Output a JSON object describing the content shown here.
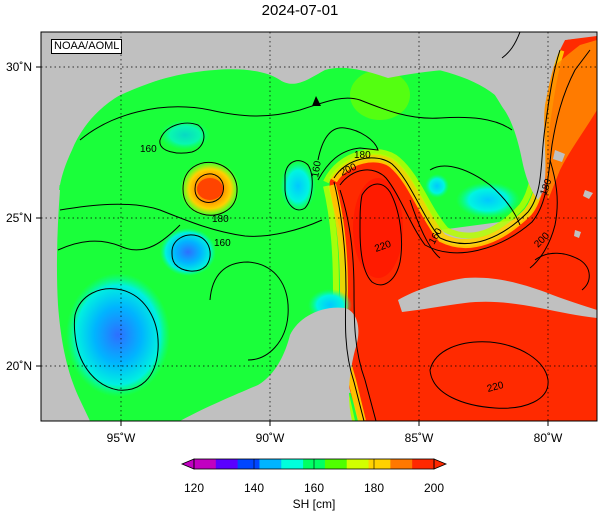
{
  "title": "2024-07-01",
  "credit": "NOAA/AOML",
  "colorbar": {
    "label": "SH [cm]",
    "ticks": [
      "120",
      "140",
      "160",
      "180",
      "200"
    ],
    "min": 120,
    "max": 200,
    "colors": [
      "#c100c1",
      "#5a00ff",
      "#0046ff",
      "#00b4ff",
      "#00ffdc",
      "#00ff64",
      "#50ff00",
      "#d2ff00",
      "#ffd200",
      "#ff7800",
      "#ff2800"
    ]
  },
  "axes": {
    "lon_ticks": [
      "95˚W",
      "90˚W",
      "85˚W",
      "80˚W"
    ],
    "lat_ticks": [
      "30˚N",
      "25˚N",
      "20˚N"
    ]
  },
  "contour_labels": [
    "160",
    "180",
    "200",
    "160",
    "180",
    "160",
    "220",
    "180",
    "160",
    "200",
    "220"
  ],
  "marker": "buoy-triangle",
  "colors": {
    "land": "#c0c0c0",
    "loop_current": "#ff2a00",
    "basin": "#00ff55"
  }
}
